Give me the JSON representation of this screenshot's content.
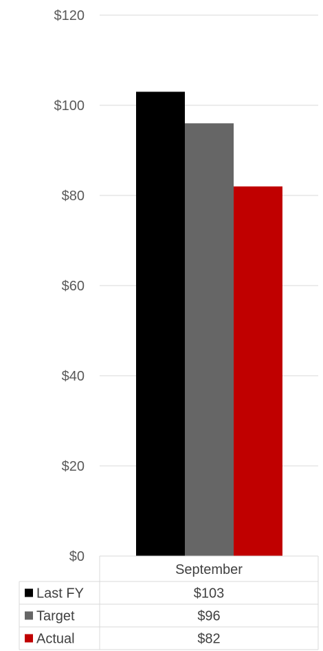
{
  "chart_data": {
    "type": "bar",
    "categories": [
      "September"
    ],
    "series": [
      {
        "name": "Last FY",
        "values": [
          103
        ],
        "label": "$103",
        "color": "#000000"
      },
      {
        "name": "Target",
        "values": [
          96
        ],
        "label": "$96",
        "color": "#666666"
      },
      {
        "name": "Actual",
        "values": [
          82
        ],
        "label": "$82",
        "color": "#c00000"
      }
    ],
    "y_ticks": [
      "$0",
      "$20",
      "$40",
      "$60",
      "$80",
      "$100",
      "$120"
    ],
    "ylim": [
      0,
      120
    ],
    "grid": true,
    "legend": "data-table-left",
    "data_table": true
  }
}
